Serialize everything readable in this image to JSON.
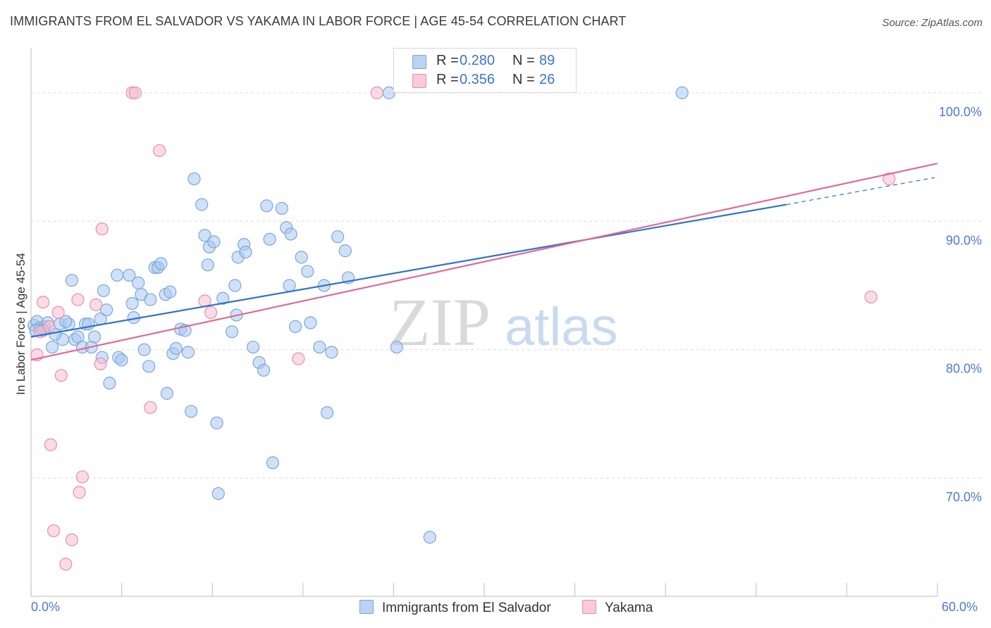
{
  "title": "IMMIGRANTS FROM EL SALVADOR VS YAKAMA IN LABOR FORCE | AGE 45-54 CORRELATION CHART",
  "source": "Source: ZipAtlas.com",
  "watermark": {
    "zip": "ZIP",
    "atlas": "atlas"
  },
  "colors": {
    "blue_fill": "#a9c8f0",
    "blue_stroke": "#7aa6dd",
    "blue_line": "#2f72cc",
    "pink_fill": "#f7bdd0",
    "pink_stroke": "#e68fae",
    "pink_line": "#e06a97",
    "axis_text": "#4a7bd0",
    "grid": "#dddddd"
  },
  "legend": {
    "rows": [
      {
        "r_label": "R =",
        "r_value": "0.280",
        "n_label": "N =",
        "n_value": "89"
      },
      {
        "r_label": "R =",
        "r_value": "0.356",
        "n_label": "N =",
        "n_value": "26"
      }
    ]
  },
  "bottom_legend": {
    "series1": "Immigrants from El Salvador",
    "series2": "Yakama"
  },
  "chart_data": {
    "type": "scatter",
    "title": "IMMIGRANTS FROM EL SALVADOR VS YAKAMA IN LABOR FORCE | AGE 45-54 CORRELATION CHART",
    "xlabel": "",
    "ylabel": "In Labor Force | Age 45-54",
    "xlim": [
      0,
      60
    ],
    "ylim": [
      60.8,
      103.5
    ],
    "x_tick_labels": {
      "min": "0.0%",
      "max": "60.0%"
    },
    "y_ticks": [
      {
        "value": 100,
        "label": "100.0%"
      },
      {
        "value": 90,
        "label": "90.0%"
      },
      {
        "value": 80,
        "label": "80.0%"
      },
      {
        "value": 70,
        "label": "70.0%"
      }
    ],
    "series": [
      {
        "name": "Immigrants from El Salvador",
        "R": 0.28,
        "N": 89,
        "trend": {
          "x0": 0,
          "y0": 81.0,
          "x1": 50,
          "y1": 91.3,
          "dash_to_x": 60,
          "dash_to_y": 93.4
        },
        "points": [
          [
            0.2,
            81.9
          ],
          [
            0.4,
            82.2
          ],
          [
            0.6,
            81.7
          ],
          [
            0.9,
            81.8
          ],
          [
            1.1,
            82.1
          ],
          [
            0.3,
            81.5
          ],
          [
            1.4,
            80.2
          ],
          [
            1.9,
            82.0
          ],
          [
            2.1,
            80.8
          ],
          [
            2.5,
            82.0
          ],
          [
            2.7,
            85.4
          ],
          [
            2.9,
            80.8
          ],
          [
            3.1,
            81.0
          ],
          [
            3.4,
            80.2
          ],
          [
            3.6,
            82.0
          ],
          [
            3.8,
            82.0
          ],
          [
            4.0,
            80.2
          ],
          [
            4.2,
            81.0
          ],
          [
            4.6,
            82.4
          ],
          [
            4.7,
            79.4
          ],
          [
            4.8,
            84.6
          ],
          [
            5.0,
            83.1
          ],
          [
            5.2,
            77.4
          ],
          [
            5.8,
            79.4
          ],
          [
            6.0,
            79.2
          ],
          [
            5.7,
            85.8
          ],
          [
            6.5,
            85.8
          ],
          [
            6.7,
            83.6
          ],
          [
            6.8,
            82.5
          ],
          [
            7.1,
            85.2
          ],
          [
            7.3,
            84.3
          ],
          [
            7.5,
            80.0
          ],
          [
            7.8,
            78.7
          ],
          [
            7.9,
            83.9
          ],
          [
            8.2,
            86.4
          ],
          [
            8.4,
            86.4
          ],
          [
            8.6,
            86.7
          ],
          [
            8.9,
            84.3
          ],
          [
            9.0,
            76.6
          ],
          [
            9.2,
            84.5
          ],
          [
            9.4,
            79.7
          ],
          [
            9.6,
            80.1
          ],
          [
            9.9,
            81.6
          ],
          [
            10.2,
            81.5
          ],
          [
            10.4,
            79.8
          ],
          [
            10.6,
            75.2
          ],
          [
            10.8,
            93.3
          ],
          [
            11.3,
            91.3
          ],
          [
            11.5,
            88.9
          ],
          [
            11.7,
            86.6
          ],
          [
            11.8,
            88.0
          ],
          [
            12.1,
            88.4
          ],
          [
            12.3,
            74.3
          ],
          [
            12.4,
            68.8
          ],
          [
            12.7,
            84.0
          ],
          [
            13.3,
            81.4
          ],
          [
            13.5,
            85.0
          ],
          [
            13.6,
            82.7
          ],
          [
            13.7,
            87.2
          ],
          [
            14.1,
            88.2
          ],
          [
            14.2,
            87.6
          ],
          [
            14.7,
            80.2
          ],
          [
            15.1,
            79.0
          ],
          [
            15.4,
            78.4
          ],
          [
            15.6,
            91.2
          ],
          [
            15.8,
            88.6
          ],
          [
            16.0,
            71.2
          ],
          [
            16.6,
            91.0
          ],
          [
            16.9,
            89.5
          ],
          [
            17.1,
            85.0
          ],
          [
            17.2,
            89.0
          ],
          [
            17.5,
            81.8
          ],
          [
            17.9,
            87.2
          ],
          [
            18.3,
            86.1
          ],
          [
            18.5,
            82.1
          ],
          [
            19.1,
            80.2
          ],
          [
            19.4,
            85.0
          ],
          [
            19.6,
            75.1
          ],
          [
            19.9,
            79.8
          ],
          [
            20.3,
            88.8
          ],
          [
            20.8,
            87.7
          ],
          [
            21.0,
            85.6
          ],
          [
            23.7,
            100.0
          ],
          [
            24.2,
            80.2
          ],
          [
            26.4,
            65.4
          ],
          [
            43.1,
            100.0
          ],
          [
            0.8,
            81.5
          ],
          [
            1.6,
            81.2
          ],
          [
            2.3,
            82.2
          ]
        ]
      },
      {
        "name": "Yakama",
        "R": 0.356,
        "N": 26,
        "trend": {
          "x0": 0,
          "y0": 79.2,
          "x1": 60,
          "y1": 94.5
        },
        "points": [
          [
            0.4,
            79.6
          ],
          [
            0.6,
            81.4
          ],
          [
            0.8,
            83.7
          ],
          [
            1.2,
            81.8
          ],
          [
            1.3,
            72.6
          ],
          [
            1.5,
            65.9
          ],
          [
            1.8,
            82.9
          ],
          [
            2.0,
            78.0
          ],
          [
            2.3,
            63.3
          ],
          [
            2.7,
            65.2
          ],
          [
            3.1,
            83.9
          ],
          [
            3.2,
            68.9
          ],
          [
            3.4,
            70.1
          ],
          [
            4.3,
            83.5
          ],
          [
            4.6,
            78.9
          ],
          [
            4.7,
            89.4
          ],
          [
            6.7,
            100.0
          ],
          [
            6.9,
            100.0
          ],
          [
            7.9,
            75.5
          ],
          [
            8.5,
            95.5
          ],
          [
            11.5,
            83.8
          ],
          [
            11.9,
            82.9
          ],
          [
            17.7,
            79.3
          ],
          [
            22.9,
            100.0
          ],
          [
            55.6,
            84.1
          ],
          [
            56.8,
            93.3
          ]
        ]
      }
    ]
  }
}
